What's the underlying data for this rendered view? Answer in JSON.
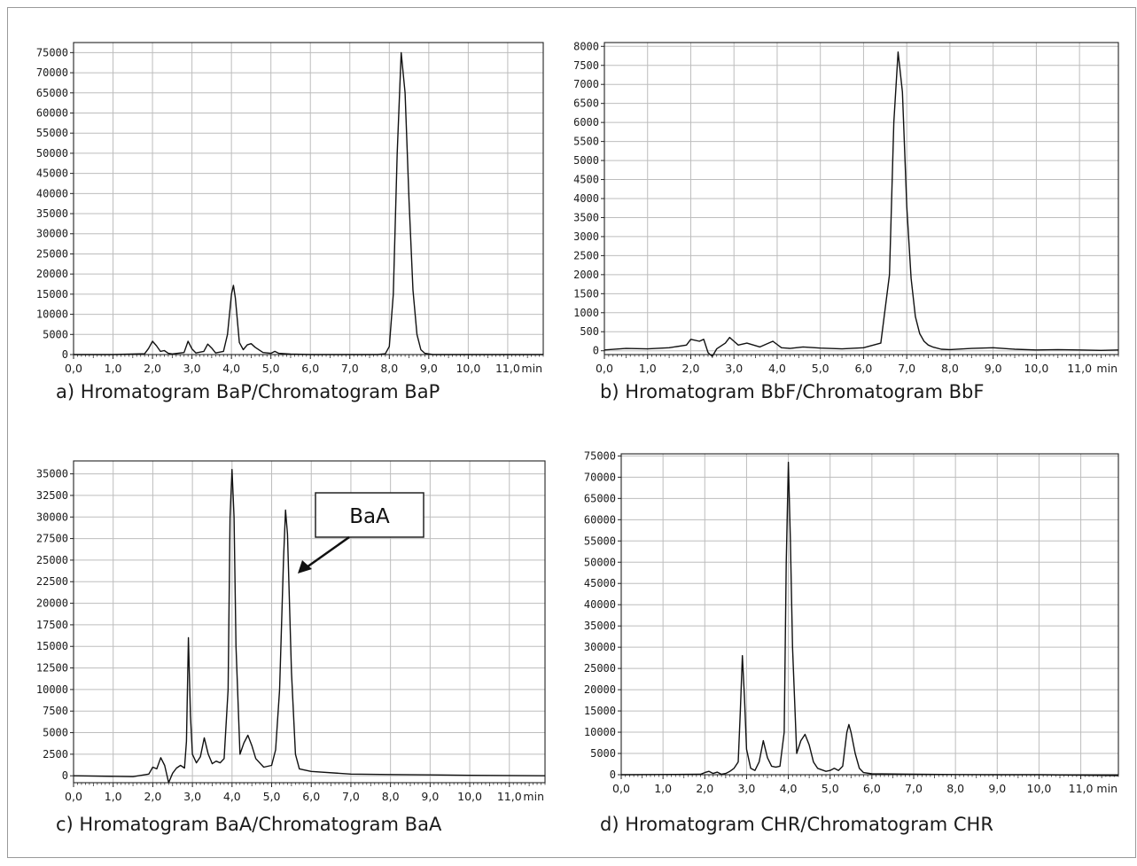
{
  "chart_data": [
    {
      "type": "line",
      "caption": "a) Hromatogram BaP/Chromatogram BaP",
      "x_unit": "min",
      "xlim": [
        0,
        11.9
      ],
      "ylim": [
        0,
        77500
      ],
      "yticks": [
        0,
        5000,
        10000,
        15000,
        20000,
        25000,
        30000,
        35000,
        40000,
        45000,
        50000,
        55000,
        60000,
        65000,
        70000,
        75000
      ],
      "xticks": [
        "0,0",
        "1,0",
        "2,0",
        "3,0",
        "4,0",
        "5,0",
        "6,0",
        "7,0",
        "8,0",
        "9,0",
        "10,0",
        "11,0"
      ],
      "grid": true,
      "series": [
        {
          "x": [
            0.0,
            1.0,
            1.8,
            1.9,
            2.0,
            2.1,
            2.2,
            2.3,
            2.4,
            2.5,
            2.8,
            2.9,
            3.0,
            3.1,
            3.3,
            3.4,
            3.5,
            3.6,
            3.8,
            3.9,
            4.0,
            4.05,
            4.1,
            4.2,
            4.3,
            4.4,
            4.5,
            4.6,
            4.8,
            5.0,
            5.1,
            5.2,
            5.5,
            6.0,
            7.0,
            7.7,
            7.9,
            8.0,
            8.1,
            8.2,
            8.3,
            8.4,
            8.5,
            8.6,
            8.7,
            8.8,
            8.9,
            9.1,
            10.0,
            11.9
          ],
          "y": [
            0,
            0,
            200,
            1500,
            3300,
            2200,
            800,
            1000,
            300,
            150,
            500,
            3300,
            1400,
            400,
            800,
            2600,
            1600,
            400,
            800,
            5000,
            15000,
            17200,
            14000,
            3000,
            1200,
            2400,
            2700,
            1800,
            500,
            300,
            800,
            300,
            100,
            0,
            0,
            0,
            200,
            2000,
            15000,
            50000,
            75000,
            65000,
            38000,
            16000,
            5000,
            1200,
            300,
            0,
            0,
            0
          ]
        }
      ]
    },
    {
      "type": "line",
      "caption": "b) Hromatogram BbF/Chromatogram BbF",
      "x_unit": "min",
      "xlim": [
        0,
        11.9
      ],
      "ylim": [
        -100,
        8100
      ],
      "yticks": [
        0,
        500,
        1000,
        1500,
        2000,
        2500,
        3000,
        3500,
        4000,
        4500,
        5000,
        5500,
        6000,
        6500,
        7000,
        7500,
        8000
      ],
      "xticks": [
        "0,0",
        "1,0",
        "2,0",
        "3,0",
        "4,0",
        "5,0",
        "6,0",
        "7,0",
        "8,0",
        "9,0",
        "10,0",
        "11,0"
      ],
      "grid": true,
      "series": [
        {
          "x": [
            0.0,
            0.5,
            1.0,
            1.5,
            1.9,
            2.0,
            2.2,
            2.3,
            2.4,
            2.5,
            2.6,
            2.8,
            2.9,
            3.0,
            3.1,
            3.3,
            3.6,
            3.9,
            4.1,
            4.3,
            4.6,
            5.0,
            5.5,
            6.0,
            6.4,
            6.6,
            6.7,
            6.8,
            6.9,
            7.0,
            7.1,
            7.2,
            7.3,
            7.4,
            7.5,
            7.6,
            7.8,
            8.0,
            8.5,
            9.0,
            9.5,
            10.0,
            10.5,
            11.0,
            11.5,
            11.9
          ],
          "y": [
            20,
            60,
            50,
            80,
            150,
            300,
            250,
            300,
            -50,
            -150,
            50,
            200,
            350,
            250,
            150,
            200,
            100,
            250,
            80,
            60,
            100,
            70,
            50,
            80,
            200,
            2000,
            6000,
            7850,
            6800,
            3800,
            1900,
            900,
            450,
            250,
            150,
            100,
            40,
            30,
            60,
            80,
            40,
            20,
            30,
            20,
            10,
            20
          ]
        }
      ]
    },
    {
      "type": "line",
      "caption": "c) Hromatogram BaA/Chromatogram BaA",
      "x_unit": "min",
      "xlim": [
        0,
        11.9
      ],
      "ylim": [
        -800,
        36500
      ],
      "yticks": [
        0,
        2500,
        5000,
        7500,
        10000,
        12500,
        15000,
        17500,
        20000,
        22500,
        25000,
        27500,
        30000,
        32500,
        35000
      ],
      "xticks": [
        "0,0",
        "1,0",
        "2,0",
        "3,0",
        "4,0",
        "5,0",
        "6,0",
        "7,0",
        "8,0",
        "9,0",
        "10,0",
        "11,0"
      ],
      "grid": true,
      "series": [
        {
          "x": [
            0.0,
            1.5,
            1.9,
            2.0,
            2.1,
            2.2,
            2.3,
            2.4,
            2.5,
            2.6,
            2.7,
            2.8,
            2.85,
            2.9,
            2.95,
            3.0,
            3.1,
            3.2,
            3.3,
            3.4,
            3.5,
            3.6,
            3.7,
            3.8,
            3.9,
            3.95,
            4.0,
            4.05,
            4.1,
            4.2,
            4.3,
            4.4,
            4.5,
            4.6,
            4.8,
            5.0,
            5.1,
            5.2,
            5.3,
            5.35,
            5.4,
            5.5,
            5.6,
            5.7,
            5.8,
            6.0,
            7.0,
            8.0,
            9.0,
            10.0,
            11.9
          ],
          "y": [
            0,
            -100,
            200,
            1000,
            800,
            2100,
            1200,
            -800,
            300,
            900,
            1200,
            900,
            4000,
            16000,
            7000,
            2500,
            1500,
            2200,
            4400,
            2500,
            1400,
            1700,
            1500,
            2000,
            10000,
            30000,
            35500,
            30000,
            15000,
            2500,
            3800,
            4700,
            3500,
            2000,
            1000,
            1200,
            3000,
            10000,
            25000,
            30800,
            28000,
            12000,
            2500,
            800,
            700,
            500,
            200,
            150,
            100,
            50,
            0
          ]
        }
      ],
      "annotations": [
        {
          "text": "BaA"
        }
      ]
    },
    {
      "type": "line",
      "caption": "d) Hromatogram CHR/Chromatogram CHR",
      "x_unit": "min",
      "xlim": [
        0,
        11.9
      ],
      "ylim": [
        0,
        75500
      ],
      "yticks": [
        0,
        5000,
        10000,
        15000,
        20000,
        25000,
        30000,
        35000,
        40000,
        45000,
        50000,
        55000,
        60000,
        65000,
        70000,
        75000
      ],
      "xticks": [
        "0,0",
        "1,0",
        "2,0",
        "3,0",
        "4,0",
        "5,0",
        "6,0",
        "7,0",
        "8,0",
        "9,0",
        "10,0",
        "11,0"
      ],
      "grid": true,
      "series": [
        {
          "x": [
            0.0,
            1.9,
            2.0,
            2.1,
            2.2,
            2.3,
            2.4,
            2.5,
            2.6,
            2.7,
            2.8,
            2.85,
            2.9,
            2.95,
            3.0,
            3.1,
            3.2,
            3.3,
            3.4,
            3.5,
            3.6,
            3.7,
            3.8,
            3.9,
            3.95,
            4.0,
            4.05,
            4.1,
            4.2,
            4.3,
            4.4,
            4.5,
            4.6,
            4.7,
            4.9,
            5.0,
            5.1,
            5.2,
            5.3,
            5.4,
            5.45,
            5.5,
            5.6,
            5.7,
            5.8,
            6.0,
            7.0,
            8.0,
            9.0,
            10.0,
            11.9
          ],
          "y": [
            0,
            100,
            500,
            800,
            300,
            600,
            100,
            300,
            800,
            1500,
            3000,
            15000,
            28000,
            18000,
            6000,
            1500,
            1000,
            3000,
            8000,
            4000,
            2000,
            1800,
            2000,
            10000,
            50000,
            73500,
            55000,
            30000,
            5000,
            8000,
            9500,
            7000,
            3000,
            1500,
            800,
            1000,
            1500,
            1000,
            2000,
            10000,
            11800,
            10000,
            5000,
            1500,
            500,
            200,
            100,
            50,
            0,
            0,
            -200
          ]
        }
      ]
    }
  ]
}
